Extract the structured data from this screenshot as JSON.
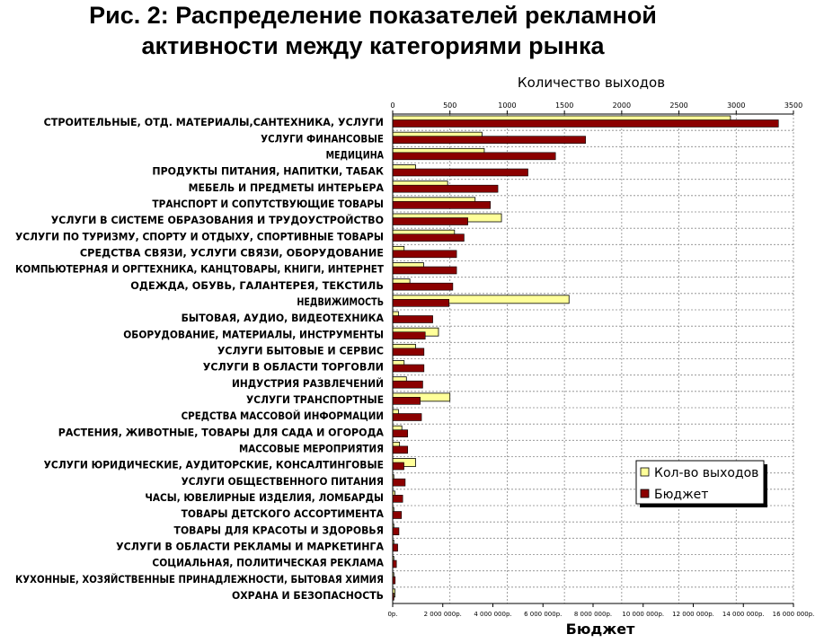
{
  "title_lines": [
    "Рис. 2: Распределение показателей рекламной",
    "активности между категориями рынка"
  ],
  "colors": {
    "count": "#ffff99",
    "budget": "#8b0000",
    "grid": "#888888"
  },
  "chart_data": {
    "type": "bar",
    "orientation": "horizontal",
    "title": "Рис. 2: Распределение показателей рекламной активности между категориями рынка",
    "top_axis_label": "Количество выходов",
    "bottom_axis_label": "Бюджет",
    "top_axis_ticks": [
      "0",
      "500",
      "1000",
      "1500",
      "2000",
      "2500",
      "3000",
      "3500"
    ],
    "bottom_axis_ticks": [
      "0р.",
      "2 000 000р.",
      "4 000 000р.",
      "6 000 000р.",
      "8 000 000р.",
      "10 000 000р.",
      "12 000 000р.",
      "14 000 000р.",
      "16 000 000р."
    ],
    "top_axis_range": [
      0,
      3500
    ],
    "bottom_axis_range": [
      0,
      16000000
    ],
    "grid": true,
    "legend_position": "bottom-right",
    "categories": [
      "СТРОИТЕЛЬНЫЕ, ОТД. МАТЕРИАЛЫ,САНТЕХНИКА, УСЛУГИ",
      "УСЛУГИ ФИНАНСОВЫЕ",
      "МЕДИЦИНА",
      "ПРОДУКТЫ ПИТАНИЯ, НАПИТКИ, ТАБАК",
      "МЕБЕЛЬ И ПРЕДМЕТЫ ИНТЕРЬЕРА",
      "ТРАНСПОРТ И СОПУТСТВУЮЩИЕ ТОВАРЫ",
      "УСЛУГИ В СИСТЕМЕ ОБРАЗОВАНИЯ И ТРУДОУСТРОЙСТВО",
      "УСЛУГИ ПО ТУРИЗМУ, СПОРТУ И ОТДЫХУ, СПОРТИВНЫЕ ТОВАРЫ",
      "СРЕДСТВА СВЯЗИ, УСЛУГИ СВЯЗИ, ОБОРУДОВАНИЕ",
      "КОМПЬЮТЕРНАЯ И ОРГТЕХНИКА, КАНЦТОВАРЫ, КНИГИ, ИНТЕРНЕТ",
      "ОДЕЖДА, ОБУВЬ, ГАЛАНТЕРЕЯ, ТЕКСТИЛЬ",
      "НЕДВИЖИМОСТЬ",
      "БЫТОВАЯ, АУДИО, ВИДЕОТЕХНИКА",
      "ОБОРУДОВАНИЕ, МАТЕРИАЛЫ, ИНСТРУМЕНТЫ",
      "УСЛУГИ БЫТОВЫЕ И СЕРВИС",
      "УСЛУГИ В ОБЛАСТИ ТОРГОВЛИ",
      "ИНДУСТРИЯ РАЗВЛЕЧЕНИЙ",
      "УСЛУГИ ТРАНСПОРТНЫЕ",
      "СРЕДСТВА МАССОВОЙ ИНФОРМАЦИИ",
      "РАСТЕНИЯ, ЖИВОТНЫЕ, ТОВАРЫ ДЛЯ САДА И ОГОРОДА",
      "МАССОВЫЕ МЕРОПРИЯТИЯ",
      "УСЛУГИ ЮРИДИЧЕСКИЕ, АУДИТОРСКИЕ, КОНСАЛТИНГОВЫЕ",
      "УСЛУГИ ОБЩЕСТВЕННОГО ПИТАНИЯ",
      "ЧАСЫ, ЮВЕЛИРНЫЕ ИЗДЕЛИЯ, ЛОМБАРДЫ",
      "ТОВАРЫ ДЕТСКОГО АССОРТИМЕНТА",
      "ТОВАРЫ ДЛЯ КРАСОТЫ И ЗДОРОВЬЯ",
      "УСЛУГИ В ОБЛАСТИ РЕКЛАМЫ И МАРКЕТИНГА",
      "СОЦИАЛЬНАЯ, ПОЛИТИЧЕСКАЯ РЕКЛАМА",
      "КУХОННЫЕ, ХОЗЯЙСТВЕННЫЕ ПРИНАДЛЕЖНОСТИ, БЫТОВАЯ ХИМИЯ",
      "ОХРАНА И БЕЗОПАСНОСТЬ"
    ],
    "series": [
      {
        "name": "Кол-во выходов",
        "axis": "top",
        "values": [
          2950,
          780,
          800,
          200,
          480,
          720,
          950,
          540,
          100,
          270,
          150,
          1540,
          50,
          400,
          200,
          100,
          120,
          500,
          50,
          80,
          60,
          200,
          10,
          20,
          10,
          10,
          10,
          10,
          10,
          20
        ]
      },
      {
        "name": "Бюджет",
        "axis": "bottom",
        "values": [
          15400000,
          7700000,
          6500000,
          5400000,
          4200000,
          3900000,
          3000000,
          2850000,
          2550000,
          2550000,
          2400000,
          2250000,
          1600000,
          1300000,
          1250000,
          1250000,
          1200000,
          1100000,
          1150000,
          600000,
          600000,
          450000,
          500000,
          400000,
          350000,
          250000,
          200000,
          150000,
          100000,
          50000
        ]
      }
    ]
  }
}
